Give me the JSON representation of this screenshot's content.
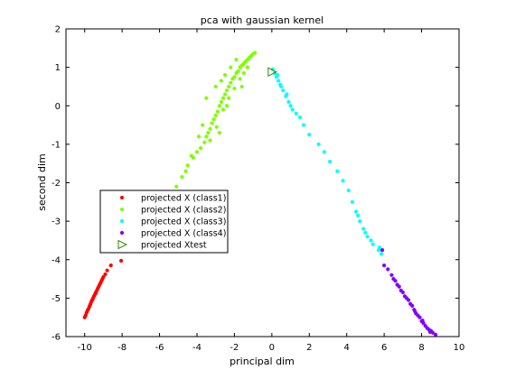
{
  "chart_data": {
    "type": "scatter",
    "title": "pca with gaussian kernel",
    "xlabel": "principal dim",
    "ylabel": "second dim",
    "xlim": [
      -11,
      10
    ],
    "ylim": [
      -6,
      2
    ],
    "xticks": [
      -10,
      -8,
      -6,
      -4,
      -2,
      0,
      2,
      4,
      6,
      8,
      10
    ],
    "yticks": [
      -6,
      -5,
      -4,
      -3,
      -2,
      -1,
      0,
      1,
      2
    ],
    "grid": false,
    "legend_position": "lower-left",
    "series": [
      {
        "name": "projected X (class1)",
        "color": "#ff0000",
        "marker": "dot",
        "points": [
          [
            -10.0,
            -5.5
          ],
          [
            -9.95,
            -5.45
          ],
          [
            -9.9,
            -5.38
          ],
          [
            -9.85,
            -5.32
          ],
          [
            -9.8,
            -5.28
          ],
          [
            -9.75,
            -5.22
          ],
          [
            -9.7,
            -5.16
          ],
          [
            -9.65,
            -5.1
          ],
          [
            -9.6,
            -5.05
          ],
          [
            -9.55,
            -5.0
          ],
          [
            -9.5,
            -4.95
          ],
          [
            -9.45,
            -4.9
          ],
          [
            -9.4,
            -4.85
          ],
          [
            -9.35,
            -4.8
          ],
          [
            -9.3,
            -4.75
          ],
          [
            -9.25,
            -4.7
          ],
          [
            -9.2,
            -4.65
          ],
          [
            -9.15,
            -4.6
          ],
          [
            -9.1,
            -4.55
          ],
          [
            -9.05,
            -4.5
          ],
          [
            -9.0,
            -4.45
          ],
          [
            -8.9,
            -4.38
          ],
          [
            -8.8,
            -4.28
          ],
          [
            -8.6,
            -4.15
          ],
          [
            -8.05,
            -4.03
          ],
          [
            -9.72,
            -5.2
          ],
          [
            -9.58,
            -5.04
          ],
          [
            -9.42,
            -4.88
          ]
        ]
      },
      {
        "name": "projected X (class2)",
        "color": "#7fff00",
        "marker": "dot",
        "points": [
          [
            -5.1,
            -2.1
          ],
          [
            -4.8,
            -1.85
          ],
          [
            -4.6,
            -1.7
          ],
          [
            -4.5,
            -1.55
          ],
          [
            -4.2,
            -1.35
          ],
          [
            -4.0,
            -1.2
          ],
          [
            -3.8,
            -1.1
          ],
          [
            -3.6,
            -0.95
          ],
          [
            -3.5,
            -0.8
          ],
          [
            -3.4,
            -0.7
          ],
          [
            -3.3,
            -0.6
          ],
          [
            -3.2,
            -0.45
          ],
          [
            -3.1,
            -0.35
          ],
          [
            -3.0,
            -0.25
          ],
          [
            -2.9,
            -0.15
          ],
          [
            -2.8,
            0.0
          ],
          [
            -2.7,
            0.1
          ],
          [
            -2.6,
            0.2
          ],
          [
            -2.5,
            0.3
          ],
          [
            -2.4,
            0.4
          ],
          [
            -2.3,
            0.5
          ],
          [
            -2.2,
            0.6
          ],
          [
            -2.1,
            0.7
          ],
          [
            -2.0,
            0.75
          ],
          [
            -1.9,
            0.85
          ],
          [
            -1.8,
            0.9
          ],
          [
            -1.7,
            1.0
          ],
          [
            -1.6,
            1.05
          ],
          [
            -1.5,
            1.1
          ],
          [
            -1.4,
            1.15
          ],
          [
            -1.3,
            1.2
          ],
          [
            -1.2,
            1.25
          ],
          [
            -1.1,
            1.3
          ],
          [
            -1.0,
            1.35
          ],
          [
            -0.9,
            1.38
          ],
          [
            -3.7,
            -0.5
          ],
          [
            -3.3,
            -0.9
          ],
          [
            -2.95,
            -0.55
          ],
          [
            -2.6,
            -0.1
          ],
          [
            -2.3,
            0.2
          ],
          [
            -2.0,
            0.45
          ],
          [
            -1.7,
            0.7
          ],
          [
            -1.5,
            0.85
          ],
          [
            -1.3,
            1.0
          ],
          [
            -3.0,
            0.5
          ],
          [
            -2.5,
            0.8
          ],
          [
            -2.2,
            1.0
          ],
          [
            -1.9,
            1.2
          ],
          [
            -3.5,
            0.2
          ],
          [
            -2.8,
            -0.7
          ],
          [
            -2.4,
            0.0
          ],
          [
            -1.6,
            0.5
          ],
          [
            -3.9,
            -0.8
          ],
          [
            -4.3,
            -1.3
          ],
          [
            -2.7,
            0.65
          ]
        ]
      },
      {
        "name": "projected X (class3)",
        "color": "#00ffff",
        "marker": "dot",
        "points": [
          [
            0.05,
            0.95
          ],
          [
            0.15,
            0.85
          ],
          [
            0.25,
            0.75
          ],
          [
            0.35,
            0.65
          ],
          [
            0.45,
            0.55
          ],
          [
            0.6,
            0.4
          ],
          [
            0.75,
            0.25
          ],
          [
            0.9,
            0.1
          ],
          [
            1.0,
            0.0
          ],
          [
            1.1,
            -0.1
          ],
          [
            1.3,
            -0.2
          ],
          [
            1.5,
            -0.3
          ],
          [
            1.7,
            -0.5
          ],
          [
            2.0,
            -0.75
          ],
          [
            2.5,
            -1.0
          ],
          [
            2.8,
            -1.2
          ],
          [
            3.1,
            -1.45
          ],
          [
            3.5,
            -1.7
          ],
          [
            3.8,
            -1.95
          ],
          [
            4.1,
            -2.2
          ],
          [
            4.3,
            -2.5
          ],
          [
            4.5,
            -2.75
          ],
          [
            4.7,
            -3.0
          ],
          [
            4.9,
            -3.2
          ],
          [
            5.1,
            -3.4
          ],
          [
            5.4,
            -3.6
          ],
          [
            5.7,
            -3.75
          ],
          [
            5.85,
            -3.85
          ],
          [
            0.3,
            0.8
          ],
          [
            0.5,
            0.5
          ],
          [
            0.8,
            0.3
          ],
          [
            4.6,
            -2.85
          ],
          [
            5.0,
            -3.3
          ],
          [
            5.3,
            -3.5
          ],
          [
            5.75,
            -3.68
          ]
        ]
      },
      {
        "name": "projected X (class4)",
        "color": "#8000ff",
        "marker": "dot",
        "points": [
          [
            6.0,
            -4.15
          ],
          [
            6.2,
            -4.25
          ],
          [
            6.4,
            -4.4
          ],
          [
            6.6,
            -4.55
          ],
          [
            6.8,
            -4.7
          ],
          [
            7.0,
            -4.85
          ],
          [
            7.2,
            -5.0
          ],
          [
            7.4,
            -5.15
          ],
          [
            7.6,
            -5.3
          ],
          [
            7.8,
            -5.45
          ],
          [
            8.0,
            -5.6
          ],
          [
            8.2,
            -5.72
          ],
          [
            8.4,
            -5.82
          ],
          [
            8.6,
            -5.9
          ],
          [
            8.75,
            -5.95
          ],
          [
            6.5,
            -4.5
          ],
          [
            6.9,
            -4.8
          ],
          [
            7.1,
            -4.95
          ],
          [
            7.5,
            -5.2
          ],
          [
            7.7,
            -5.4
          ],
          [
            7.9,
            -5.5
          ],
          [
            8.1,
            -5.65
          ],
          [
            8.3,
            -5.78
          ],
          [
            8.5,
            -5.85
          ],
          [
            6.7,
            -4.65
          ],
          [
            7.3,
            -5.05
          ],
          [
            7.65,
            -5.35
          ],
          [
            8.05,
            -5.58
          ],
          [
            8.45,
            -5.88
          ],
          [
            5.9,
            -3.75
          ]
        ]
      },
      {
        "name": "projected Xtest",
        "color": "#2e8b00",
        "marker": "triangle-right",
        "points": [
          [
            0.0,
            0.88
          ]
        ]
      }
    ]
  }
}
